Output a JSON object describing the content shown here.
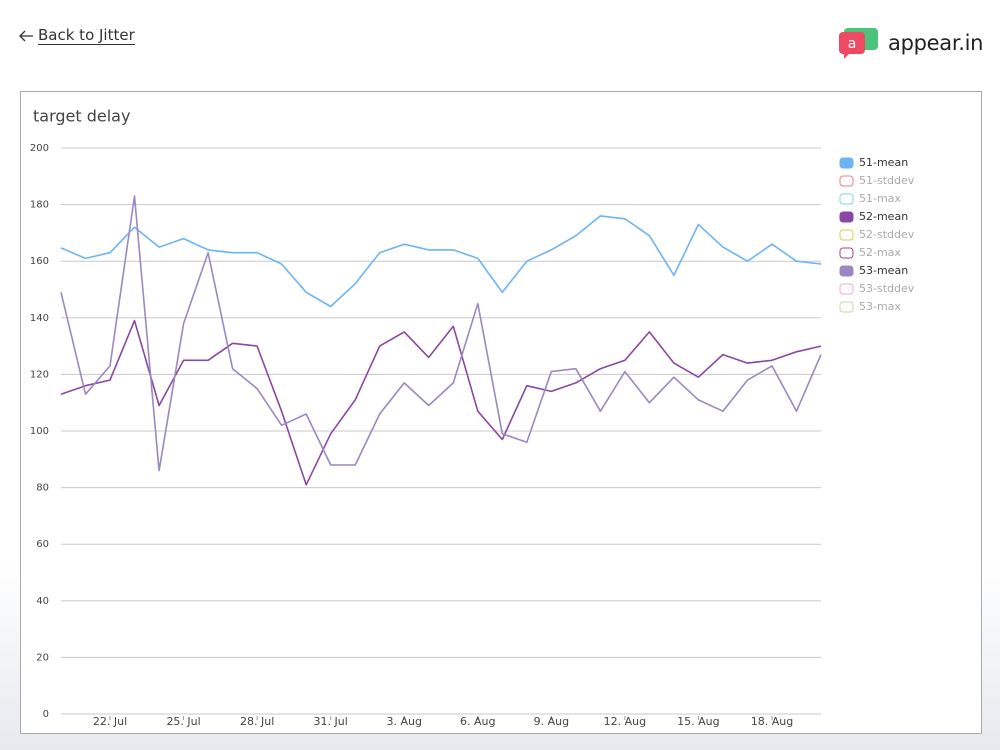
{
  "header": {
    "back_link": "Back to Jitter",
    "logo_text": "appear.in",
    "logo_icon": "a"
  },
  "chart_data": {
    "type": "line",
    "title": "target delay",
    "categories": [
      null,
      null,
      "22. Jul",
      null,
      null,
      "25. Jul",
      null,
      null,
      "28. Jul",
      null,
      null,
      "31. Jul",
      null,
      null,
      "3. Aug",
      null,
      null,
      "6. Aug",
      null,
      null,
      "9. Aug",
      null,
      null,
      "12. Aug",
      null,
      null,
      "15. Aug",
      null,
      null,
      "18. Aug",
      null,
      null
    ],
    "ylim": [
      0,
      200
    ],
    "yticks": [
      0,
      20,
      40,
      60,
      80,
      100,
      120,
      140,
      160,
      180,
      200
    ],
    "grid": true,
    "legend": "right",
    "series": [
      {
        "name": "51-mean",
        "color": "#6cb4f4",
        "visible": true,
        "values": [
          164.7,
          161,
          163,
          172,
          165,
          168,
          164,
          163,
          163,
          159,
          149,
          144,
          152,
          163,
          166,
          164,
          164,
          161,
          149,
          160,
          164,
          169,
          176,
          175,
          169,
          155,
          173,
          165,
          160,
          166,
          160,
          159
        ]
      },
      {
        "name": "51-stddev",
        "color": "#e8837e",
        "visible": false
      },
      {
        "name": "51-max",
        "color": "#7ed6d0",
        "visible": false
      },
      {
        "name": "52-mean",
        "color": "#8a47a3",
        "visible": true,
        "values": [
          113,
          116,
          118,
          139,
          109,
          125,
          125,
          131,
          130,
          107,
          81,
          99,
          111,
          130,
          135,
          126,
          137,
          107,
          97,
          116,
          114,
          117,
          122,
          125,
          135,
          124,
          119,
          127,
          124,
          125,
          128,
          130
        ]
      },
      {
        "name": "52-stddev",
        "color": "#d2d244",
        "visible": false
      },
      {
        "name": "52-max",
        "color": "#b0407a",
        "visible": false
      },
      {
        "name": "53-mean",
        "color": "#9a88c4",
        "visible": true,
        "values": [
          149,
          113,
          123,
          183,
          86,
          138,
          163,
          122,
          115,
          102,
          106,
          88,
          88,
          106,
          117,
          109,
          117,
          145,
          99,
          96,
          121,
          122,
          107,
          121,
          110,
          119,
          111,
          107,
          118,
          123,
          107,
          127
        ]
      },
      {
        "name": "53-stddev",
        "color": "#f0a8c8",
        "visible": false
      },
      {
        "name": "53-max",
        "color": "#c4d4a8",
        "visible": false
      }
    ]
  }
}
